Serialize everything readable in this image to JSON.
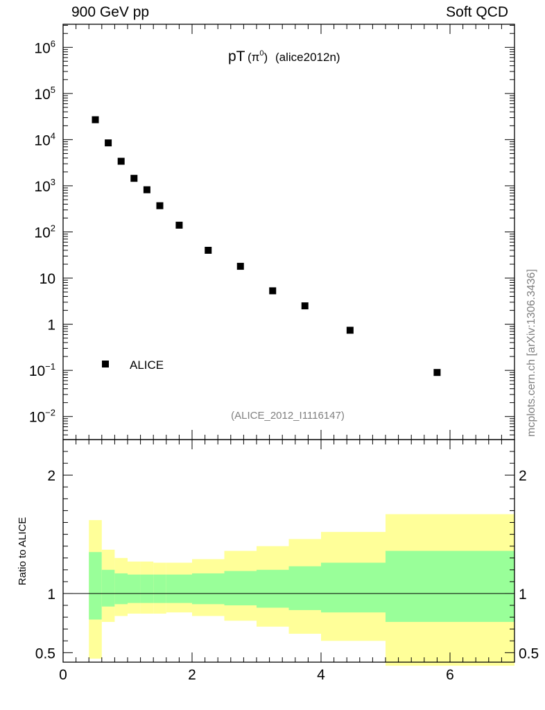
{
  "header": {
    "left": "900 GeV pp",
    "right": "Soft QCD"
  },
  "side_label": "mcplots.cern.ch [arXiv:1306.3436]",
  "colors": {
    "yellow_band": "#ffff99",
    "green_band": "#99ff99",
    "data_marker": "#000000",
    "watermark": "#808080"
  },
  "chart_data": {
    "type": "scatter",
    "title_main": "pT",
    "title_particle": "(π",
    "title_particle_sup": "0",
    "title_particle_close": ")",
    "title_tag": "(alice2012n)",
    "analysis_id": "(ALICE_2012_I1116147)",
    "legend": {
      "label": "ALICE",
      "position": "bottom-left"
    },
    "xlim": [
      0,
      7
    ],
    "x_ticks": [
      0,
      2,
      4,
      6
    ],
    "x_tick_labels": [
      "0",
      "2",
      "4",
      "6"
    ],
    "main": {
      "yscale": "log",
      "ylim_log10": [
        -2.5,
        6.5
      ],
      "y_ticks": [
        {
          "exp": 6,
          "base": "10",
          "sup": "6"
        },
        {
          "exp": 5,
          "base": "10",
          "sup": "5"
        },
        {
          "exp": 4,
          "base": "10",
          "sup": "4"
        },
        {
          "exp": 3,
          "base": "10",
          "sup": "3"
        },
        {
          "exp": 2,
          "base": "10",
          "sup": "2"
        },
        {
          "exp": 1,
          "base": "10",
          "sup": ""
        },
        {
          "exp": 0,
          "base": "1",
          "sup": ""
        },
        {
          "exp": -1,
          "base": "10",
          "sup": "−1"
        },
        {
          "exp": -2,
          "base": "10",
          "sup": "−2"
        }
      ],
      "series": [
        {
          "name": "ALICE",
          "x": [
            0.5,
            0.7,
            0.9,
            1.1,
            1.3,
            1.5,
            1.8,
            2.25,
            2.75,
            3.25,
            3.75,
            4.45,
            5.8
          ],
          "y": [
            27000,
            8500,
            3400,
            1450,
            820,
            370,
            140,
            40,
            18,
            5.3,
            2.5,
            0.74,
            0.09
          ]
        }
      ]
    },
    "ratio": {
      "ylabel": "Ratio to ALICE",
      "ylim": [
        0.42,
        2.3
      ],
      "y_ticks": [
        {
          "value": 0.5,
          "label": "0.5"
        },
        {
          "value": 1,
          "label": "1"
        },
        {
          "value": 2,
          "label": "2"
        }
      ],
      "reference": 1,
      "bins": [
        {
          "x0": 0.4,
          "x1": 0.6,
          "green_lo": 0.78,
          "green_hi": 1.35,
          "yellow_lo": 0.45,
          "yellow_hi": 1.62
        },
        {
          "x0": 0.6,
          "x1": 0.8,
          "green_lo": 0.89,
          "green_hi": 1.2,
          "yellow_lo": 0.76,
          "yellow_hi": 1.37
        },
        {
          "x0": 0.8,
          "x1": 1.0,
          "green_lo": 0.91,
          "green_hi": 1.17,
          "yellow_lo": 0.81,
          "yellow_hi": 1.3
        },
        {
          "x0": 1.0,
          "x1": 1.2,
          "green_lo": 0.92,
          "green_hi": 1.16,
          "yellow_lo": 0.83,
          "yellow_hi": 1.27
        },
        {
          "x0": 1.2,
          "x1": 1.4,
          "green_lo": 0.92,
          "green_hi": 1.16,
          "yellow_lo": 0.83,
          "yellow_hi": 1.27
        },
        {
          "x0": 1.4,
          "x1": 1.6,
          "green_lo": 0.92,
          "green_hi": 1.16,
          "yellow_lo": 0.83,
          "yellow_hi": 1.26
        },
        {
          "x0": 1.6,
          "x1": 2.0,
          "green_lo": 0.92,
          "green_hi": 1.16,
          "yellow_lo": 0.84,
          "yellow_hi": 1.26
        },
        {
          "x0": 2.0,
          "x1": 2.5,
          "green_lo": 0.91,
          "green_hi": 1.17,
          "yellow_lo": 0.81,
          "yellow_hi": 1.29
        },
        {
          "x0": 2.5,
          "x1": 3.0,
          "green_lo": 0.9,
          "green_hi": 1.19,
          "yellow_lo": 0.77,
          "yellow_hi": 1.36
        },
        {
          "x0": 3.0,
          "x1": 3.5,
          "green_lo": 0.88,
          "green_hi": 1.2,
          "yellow_lo": 0.72,
          "yellow_hi": 1.4
        },
        {
          "x0": 3.5,
          "x1": 4.0,
          "green_lo": 0.86,
          "green_hi": 1.23,
          "yellow_lo": 0.66,
          "yellow_hi": 1.46
        },
        {
          "x0": 4.0,
          "x1": 5.0,
          "green_lo": 0.84,
          "green_hi": 1.26,
          "yellow_lo": 0.6,
          "yellow_hi": 1.52
        },
        {
          "x0": 5.0,
          "x1": 7.0,
          "green_lo": 0.76,
          "green_hi": 1.36,
          "yellow_lo": 0.39,
          "yellow_hi": 1.67
        }
      ]
    }
  }
}
